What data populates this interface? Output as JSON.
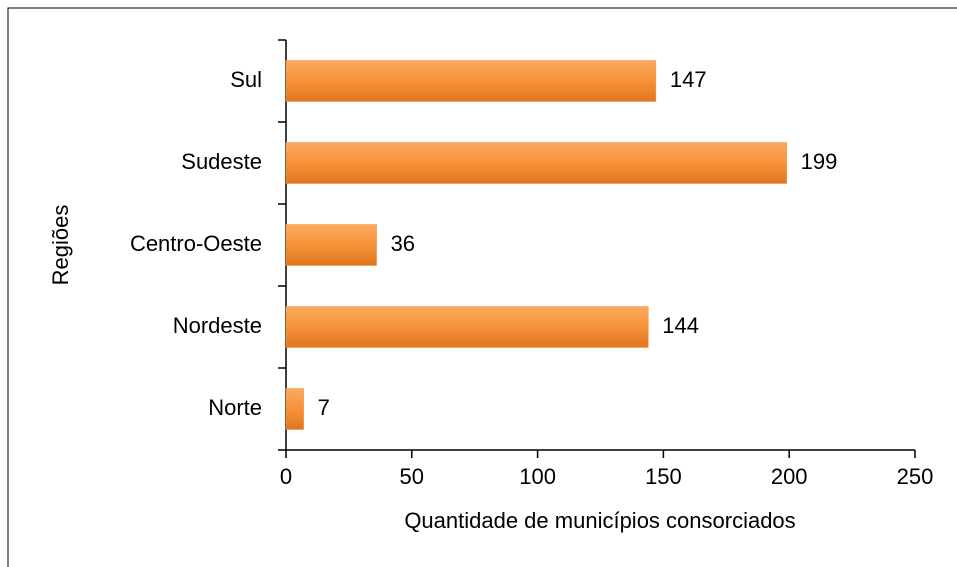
{
  "chart_data": {
    "type": "hbar",
    "categories": [
      "Sul",
      "Sudeste",
      "Centro-Oeste",
      "Nordeste",
      "Norte"
    ],
    "values": [
      147,
      199,
      36,
      144,
      7
    ],
    "color": "#f7923a",
    "xlim": [
      0,
      250
    ],
    "xticks": [
      0,
      50,
      100,
      150,
      200,
      250
    ],
    "xlabel": "Quantidade de municípios consorciados",
    "ylabel": "Regiões",
    "grid": false
  }
}
